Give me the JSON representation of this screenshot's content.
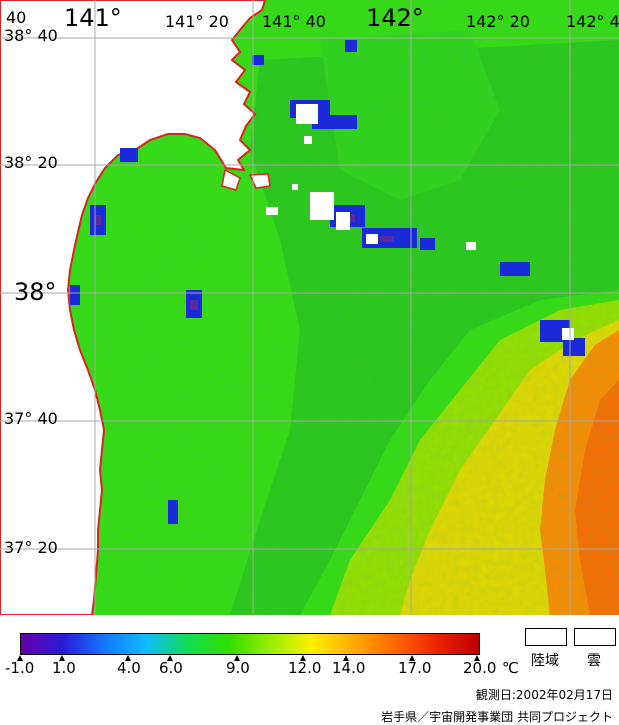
{
  "map": {
    "lon_labels": [
      "141°",
      "141° 20",
      "141° 40",
      "142°",
      "142° 20",
      "142° 4"
    ],
    "corner_label": "40",
    "lat_labels": [
      "38° 40",
      "38° 20",
      "38°",
      "37° 40",
      "37° 20"
    ],
    "colors": {
      "land": "#ffffff",
      "coast": "#dd2222",
      "grid": "#a8a8a8",
      "sea_dominant": "#33dd11",
      "sea_warm": "#ff8800",
      "cloud": "#ffffff"
    }
  },
  "legend": {
    "tick_labels": [
      "-1.0",
      "1.0",
      "4.0",
      "6.0",
      "9.0",
      "12.0",
      "14.0",
      "17.0",
      "20.0"
    ],
    "unit": "℃",
    "gradient_colors": [
      "#6600aa",
      "#2a1ad6",
      "#1177ff",
      "#11bbff",
      "#11dd55",
      "#33dd00",
      "#99ee00",
      "#ffee00",
      "#ffaa00",
      "#ff6600",
      "#ee2200",
      "#bb0000"
    ],
    "land_label": "陸域",
    "cloud_label": "雲"
  },
  "observation_date": "観測日:2002年02月17日",
  "credit": "岩手県／宇宙開発事業団 共同プロジェクト"
}
